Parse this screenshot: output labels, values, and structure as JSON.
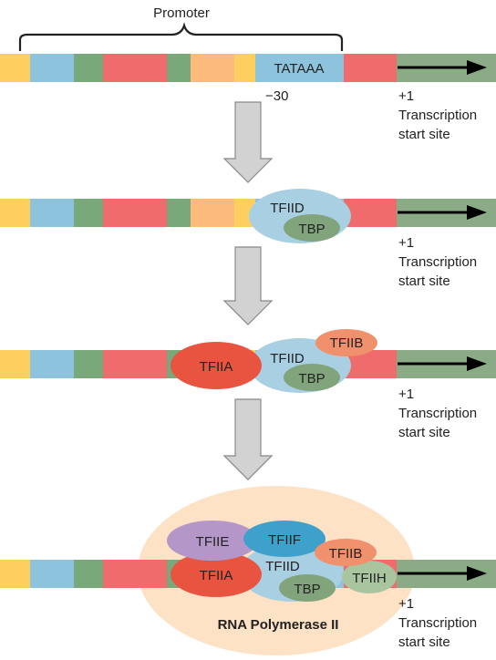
{
  "promoter_label": "Promoter",
  "tata_box": "TATAAA",
  "minus30": "−30",
  "start_site": {
    "plus1": "+1",
    "line1": "Transcription",
    "line2": "start site"
  },
  "factors": {
    "tfiid": "TFIID",
    "tbp": "TBP",
    "tfiib": "TFIIB",
    "tfiia": "TFIIA",
    "tfiie": "TFIIE",
    "tfiif": "TFIIF",
    "tfiih": "TFIIH"
  },
  "rna_polymerase": "RNA Polymerase II",
  "colors": {
    "yellow": "#fccf5e",
    "blue": "#8ec3dd",
    "green": "#79a87a",
    "red": "#ef6b6c",
    "orange": "#fdbb7b",
    "gene_green": "#8aab86",
    "tfiid": "#a9cfe3",
    "tbp": "#82a47c",
    "tfiib": "#f1906c",
    "tfiia": "#e95441",
    "tfiie": "#b497c8",
    "tfiif": "#3ea1cc",
    "tfiih": "#a8c5a0",
    "polymerase": "#fde2c6",
    "arrow": "#d2d2d2"
  }
}
